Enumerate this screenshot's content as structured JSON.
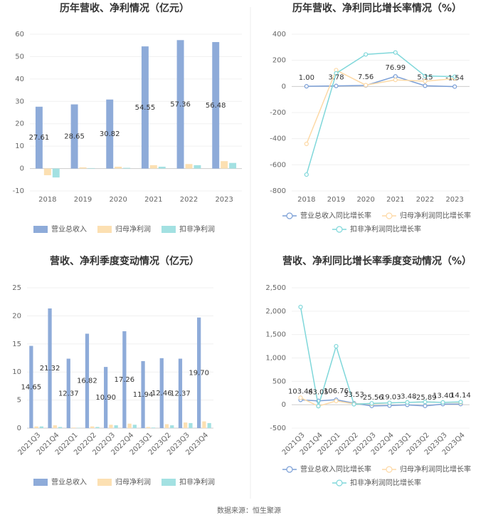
{
  "chart_data": [
    {
      "type": "bar",
      "title": "历年营收、净利情况（亿元）",
      "categories": [
        "2018",
        "2019",
        "2020",
        "2021",
        "2022",
        "2023"
      ],
      "series": [
        {
          "name": "营业总收入",
          "color": "#8eabd9",
          "values": [
            27.61,
            28.65,
            30.82,
            54.55,
            57.36,
            56.48
          ],
          "value_labels": [
            "27.61",
            "28.65",
            "30.82",
            "54.55",
            "57.36",
            "56.48"
          ]
        },
        {
          "name": "归母净利润",
          "color": "#fce0b2",
          "values": [
            -3,
            0.5,
            0.8,
            1.5,
            2,
            3.3
          ]
        },
        {
          "name": "扣非净利润",
          "color": "#a3e1e2",
          "values": [
            -4,
            0.2,
            0.3,
            0.8,
            1.5,
            2.5
          ]
        }
      ],
      "ylim": [
        -10,
        60
      ],
      "yticks": [
        -10,
        0,
        10,
        20,
        30,
        40,
        50,
        60
      ],
      "grid": true,
      "legend": "bottom"
    },
    {
      "type": "line",
      "title": "历年营收、净利同比增长率情况（%）",
      "categories": [
        "2018",
        "2019",
        "2020",
        "2021",
        "2022",
        "2023"
      ],
      "series": [
        {
          "name": "营业总收入同比增长率",
          "color": "#7b9fd6",
          "values": [
            1.0,
            3.78,
            7.56,
            76.99,
            5.15,
            -1.54
          ],
          "value_labels": [
            "1.00",
            "3.78",
            "7.56",
            "76.99",
            "5.15",
            "-1.54"
          ]
        },
        {
          "name": "归母净利润同比增长率",
          "color": "#fdd9a6",
          "values": [
            -440,
            125,
            10,
            50,
            40,
            60
          ]
        },
        {
          "name": "扣非净利润同比增长率",
          "color": "#7fd7da",
          "values": [
            -675,
            100,
            245,
            260,
            80,
            75
          ]
        }
      ],
      "ylim": [
        -800,
        400
      ],
      "yticks": [
        -800,
        -600,
        -400,
        -200,
        0,
        200,
        400
      ],
      "grid": true,
      "legend": "bottom"
    },
    {
      "type": "bar",
      "title": "营收、净利季度变动情况（亿元）",
      "categories": [
        "2021Q3",
        "2021Q4",
        "2022Q1",
        "2022Q2",
        "2022Q3",
        "2022Q4",
        "2023Q1",
        "2023Q2",
        "2023Q3",
        "2023Q4"
      ],
      "series": [
        {
          "name": "营业总收入",
          "color": "#8eabd9",
          "values": [
            14.65,
            21.32,
            12.37,
            16.82,
            10.9,
            17.26,
            11.94,
            12.46,
            12.37,
            19.7
          ],
          "value_labels": [
            "14.65",
            "21.32",
            "12.37",
            "16.82",
            "10.90",
            "17.26",
            "11.94",
            "12.46",
            "12.37",
            "19.70"
          ]
        },
        {
          "name": "归母净利润",
          "color": "#fce0b2",
          "values": [
            0.3,
            0.5,
            0.1,
            0.3,
            0.6,
            0.8,
            0.2,
            0.7,
            1.0,
            1.2
          ]
        },
        {
          "name": "扣非净利润",
          "color": "#a3e1e2",
          "values": [
            0.3,
            0.2,
            0.05,
            0.2,
            0.5,
            0.6,
            0.1,
            0.5,
            0.9,
            0.9
          ]
        }
      ],
      "ylim": [
        0,
        25
      ],
      "yticks": [
        0,
        5,
        10,
        15,
        20,
        25
      ],
      "grid": true,
      "legend": "bottom"
    },
    {
      "type": "line",
      "title": "营收、净利同比增长率季度变动情况（%）",
      "categories": [
        "2021Q3",
        "2021Q4",
        "2022Q1",
        "2022Q2",
        "2022Q3",
        "2022Q4",
        "2023Q1",
        "2023Q2",
        "2023Q3",
        "2023Q4"
      ],
      "series": [
        {
          "name": "营业总收入同比增长率",
          "color": "#7b9fd6",
          "values": [
            103.44,
            83.05,
            106.76,
            33.53,
            -25.56,
            -19.03,
            -3.48,
            -25.89,
            13.4,
            14.14
          ],
          "value_labels": [
            "103.44",
            "83.05",
            "106.76",
            "33.53",
            "-25.56",
            "-19.03",
            "-3.48",
            "-25.89",
            "13.40",
            "14.14"
          ]
        },
        {
          "name": "归母净利润同比增长率",
          "color": "#fdd9a6",
          "values": [
            150,
            -30,
            80,
            20,
            20,
            40,
            50,
            60,
            50,
            50
          ]
        },
        {
          "name": "扣非净利润同比增长率",
          "color": "#7fd7da",
          "values": [
            2090,
            -30,
            1250,
            10,
            30,
            40,
            50,
            60,
            50,
            60
          ]
        }
      ],
      "ylim": [
        -500,
        2500
      ],
      "yticks": [
        -500,
        0,
        500,
        {
          "value": 1000,
          "label": "1,000"
        },
        {
          "value": 1500,
          "label": "1,500"
        },
        {
          "value": 2000,
          "label": "2,000"
        },
        {
          "value": 2500,
          "label": "2,500"
        }
      ],
      "grid": true,
      "legend": "bottom"
    }
  ],
  "source": "数据来源：恒生聚源"
}
